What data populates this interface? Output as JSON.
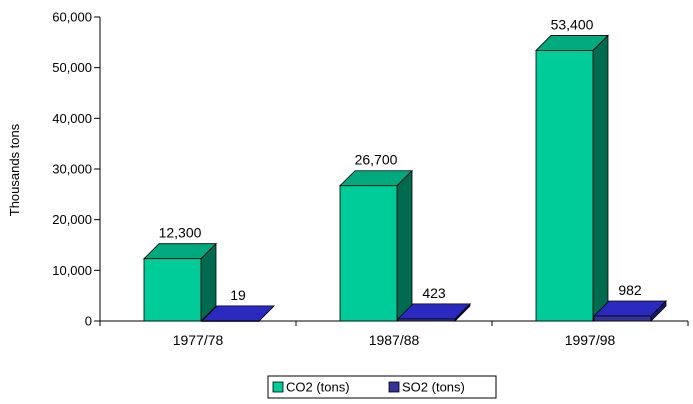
{
  "chart_data": {
    "type": "bar",
    "categories": [
      "1977/78",
      "1987/88",
      "1997/98"
    ],
    "series": [
      {
        "name": "CO2 (tons)",
        "values": [
          12300,
          26700,
          53400
        ],
        "labels": [
          "12,300",
          "26,700",
          "53,400"
        ]
      },
      {
        "name": "SO2 (tons)",
        "values": [
          19,
          423,
          982
        ],
        "labels": [
          "19",
          "423",
          "982"
        ]
      }
    ],
    "yticks": [
      "0",
      "10,000",
      "20,000",
      "30,000",
      "40,000",
      "50,000",
      "60,000"
    ],
    "ylim": [
      0,
      60000
    ],
    "ylabel": "Thousands tons",
    "xlabel": "",
    "title": "",
    "legend_position": "bottom",
    "grid": false,
    "three_d": true
  },
  "colors": {
    "co2_front": "#00CC99",
    "co2_top": "#00AA7E",
    "co2_side": "#006B4E",
    "so2_front": "#33339A",
    "so2_top": "#2A2AC0",
    "so2_side": "#1A1A66"
  }
}
